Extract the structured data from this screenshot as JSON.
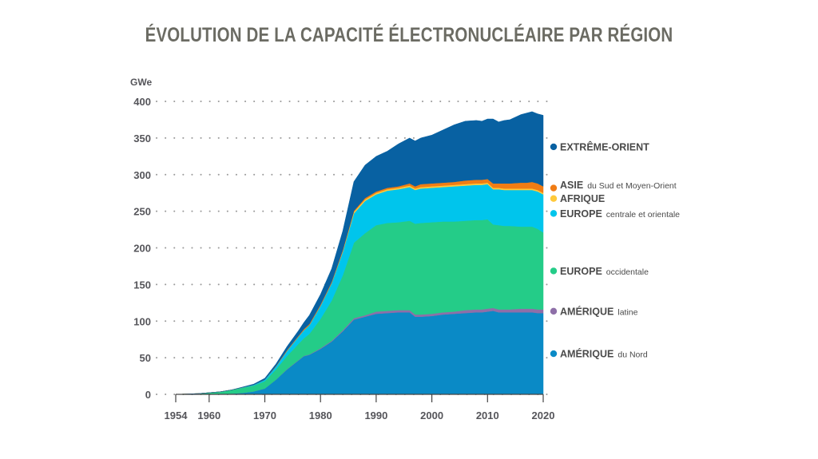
{
  "chart_data": {
    "type": "area",
    "stacked": true,
    "title": "ÉVOLUTION DE LA CAPACITÉ ÉLECTRONUCLÉAIRE PAR RÉGION",
    "unit": "GWe",
    "ylim": [
      0,
      400
    ],
    "xlim": [
      1954,
      2020
    ],
    "yticks": [
      "0",
      "50",
      "100",
      "150",
      "200",
      "250",
      "300",
      "350",
      "400"
    ],
    "xticks": [
      "1954",
      "1960",
      "1970",
      "1980",
      "1990",
      "2000",
      "2010",
      "2020"
    ],
    "grid": "dotted horizontal",
    "legend": "right, labels at series ends",
    "x": [
      1954,
      1958,
      1962,
      1964,
      1966,
      1968,
      1970,
      1972,
      1974,
      1976,
      1977,
      1978,
      1980,
      1982,
      1984,
      1986,
      1988,
      1990,
      1992,
      1994,
      1996,
      1997,
      1998,
      2000,
      2002,
      2004,
      2006,
      2008,
      2009,
      2010,
      2011,
      2012,
      2013,
      2014,
      2016,
      2017,
      2018,
      2019,
      2020
    ],
    "series": [
      {
        "name": "AMÉRIQUE",
        "suffix": "du Nord",
        "color": "#0a8ac6",
        "values": [
          0,
          0,
          0.5,
          1,
          2,
          4,
          8,
          20,
          34,
          46,
          52,
          54,
          62,
          72,
          86,
          102,
          106,
          110,
          111,
          112,
          112,
          106,
          106,
          107,
          109,
          110,
          111,
          112,
          112,
          113,
          114,
          112,
          112,
          112,
          112,
          112,
          112,
          111,
          111
        ]
      },
      {
        "name": "AMÉRIQUE",
        "suffix": "latine",
        "color": "#8e6fa8",
        "values": [
          0,
          0,
          0,
          0,
          0,
          0,
          0,
          0,
          0.5,
          0.5,
          0.5,
          0.5,
          1,
          1,
          1.5,
          2,
          2,
          3,
          3,
          3,
          3,
          3,
          3,
          3,
          3,
          3,
          4,
          4,
          4,
          4,
          4,
          4,
          4,
          4,
          5,
          5,
          5,
          5,
          5
        ]
      },
      {
        "name": "EUROPE",
        "suffix": "occidentale",
        "color": "#24cc88",
        "values": [
          0,
          1,
          3,
          5,
          7,
          8,
          10,
          14,
          18,
          22,
          24,
          28,
          40,
          55,
          75,
          103,
          112,
          118,
          120,
          120,
          122,
          124,
          125,
          125,
          124,
          123,
          122,
          122,
          122,
          122,
          114,
          115,
          114,
          114,
          112,
          112,
          112,
          110,
          105
        ]
      },
      {
        "name": "EUROPE",
        "suffix": "centrale et orientale",
        "color": "#00c5ec",
        "values": [
          0,
          0,
          0,
          0,
          0.5,
          1,
          2,
          4,
          7,
          10,
          11,
          12,
          18,
          24,
          32,
          40,
          44,
          42,
          44,
          45,
          46,
          46,
          47,
          47,
          47,
          48,
          48,
          48,
          48,
          48,
          48,
          49,
          49,
          49,
          50,
          50,
          50,
          51,
          52
        ]
      },
      {
        "name": "AFRIQUE",
        "suffix": "",
        "color": "#ffc93a",
        "values": [
          0,
          0,
          0,
          0,
          0,
          0,
          0,
          0,
          0,
          0,
          0,
          0,
          0,
          0,
          1,
          2,
          2,
          2,
          2,
          2,
          2,
          2,
          2,
          2,
          2,
          2,
          2,
          2,
          2,
          2,
          2,
          2,
          2,
          2,
          2,
          2,
          2,
          2,
          2
        ]
      },
      {
        "name": "ASIE",
        "suffix": "du Sud et Moyen-Orient",
        "color": "#f07c14",
        "values": [
          0,
          0,
          0,
          0,
          0,
          0,
          0,
          0.5,
          1,
          1,
          1.5,
          1.5,
          1.5,
          1.5,
          1.5,
          1.5,
          2,
          2,
          2,
          2,
          3,
          3,
          4,
          4,
          4,
          4,
          5,
          5,
          5,
          5,
          6,
          6,
          7,
          7,
          8,
          8,
          9,
          9,
          9
        ]
      },
      {
        "name": "EXTRÊME-ORIENT",
        "suffix": "",
        "color": "#0861a2",
        "values": [
          0,
          0,
          0,
          0,
          0.5,
          1,
          2,
          3,
          5,
          7,
          9,
          12,
          14,
          18,
          26,
          40,
          45,
          48,
          50,
          58,
          62,
          62,
          63,
          66,
          72,
          78,
          81,
          81,
          80,
          82,
          88,
          84,
          86,
          87,
          93,
          95,
          96,
          95,
          97
        ]
      }
    ]
  }
}
